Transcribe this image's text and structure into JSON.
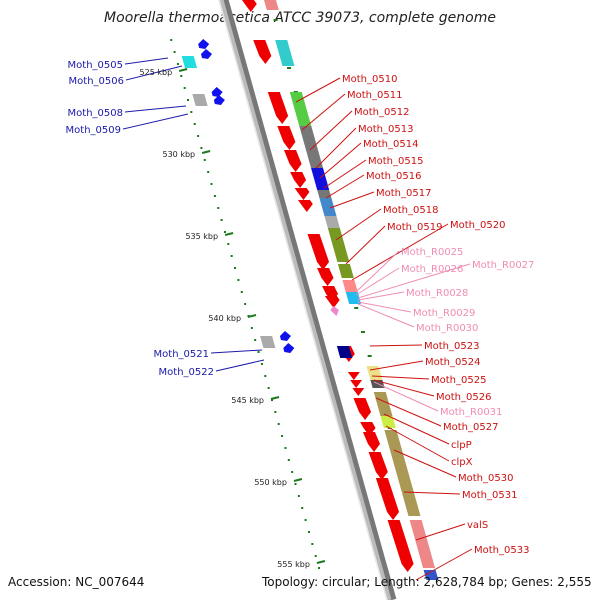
{
  "title": "Moorella thermoacetica ATCC 39073, complete genome",
  "footer": {
    "accession": "Accession: NC_007644",
    "summary": "Topology: circular; Length: 2,628,784 bp; Genes: 2,555"
  },
  "colors": {
    "left_label": "#1a1aa8",
    "right_label": "#cc1111",
    "rna_label": "#f08cb4",
    "backbone": "#888888",
    "ruler": "#1c7a1c"
  },
  "ruler_ticks": [
    "525 kbp",
    "530 kbp",
    "535 kbp",
    "540 kbp",
    "545 kbp",
    "550 kbp",
    "555 kbp"
  ],
  "left_labels": [
    "Moth_0505",
    "Moth_0506",
    "Moth_0508",
    "Moth_0509",
    "Moth_0521",
    "Moth_0522"
  ],
  "right_labels": [
    {
      "text": "Moth_0510",
      "kind": "gene"
    },
    {
      "text": "Moth_0511",
      "kind": "gene"
    },
    {
      "text": "Moth_0512",
      "kind": "gene"
    },
    {
      "text": "Moth_0513",
      "kind": "gene"
    },
    {
      "text": "Moth_0514",
      "kind": "gene"
    },
    {
      "text": "Moth_0515",
      "kind": "gene"
    },
    {
      "text": "Moth_0516",
      "kind": "gene"
    },
    {
      "text": "Moth_0517",
      "kind": "gene"
    },
    {
      "text": "Moth_0518",
      "kind": "gene"
    },
    {
      "text": "Moth_0519",
      "kind": "gene"
    },
    {
      "text": "Moth_0520",
      "kind": "gene"
    },
    {
      "text": "Moth_R0025",
      "kind": "rna"
    },
    {
      "text": "Moth_R0026",
      "kind": "rna"
    },
    {
      "text": "Moth_R0027",
      "kind": "rna"
    },
    {
      "text": "Moth_R0028",
      "kind": "rna"
    },
    {
      "text": "Moth_R0029",
      "kind": "rna"
    },
    {
      "text": "Moth_R0030",
      "kind": "rna"
    },
    {
      "text": "Moth_0523",
      "kind": "gene"
    },
    {
      "text": "Moth_0524",
      "kind": "gene"
    },
    {
      "text": "Moth_0525",
      "kind": "gene"
    },
    {
      "text": "Moth_0526",
      "kind": "gene"
    },
    {
      "text": "Moth_R0031",
      "kind": "rna"
    },
    {
      "text": "Moth_0527",
      "kind": "gene"
    },
    {
      "text": "clpP",
      "kind": "gene"
    },
    {
      "text": "clpX",
      "kind": "gene"
    },
    {
      "text": "Moth_0530",
      "kind": "gene"
    },
    {
      "text": "Moth_0531",
      "kind": "gene"
    },
    {
      "text": "valS",
      "kind": "gene"
    },
    {
      "text": "Moth_0533",
      "kind": "gene"
    }
  ]
}
